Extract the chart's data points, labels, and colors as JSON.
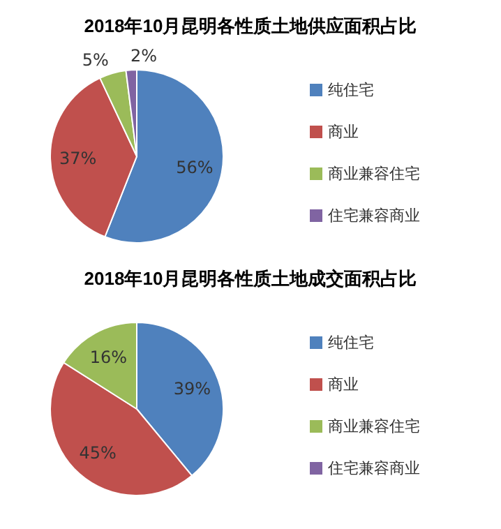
{
  "chart_data": [
    {
      "type": "pie",
      "title": "2018年10月昆明各性质土地供应面积占比",
      "categories": [
        "纯住宅",
        "商业",
        "商业兼容住宅",
        "住宅兼容商业"
      ],
      "values": [
        56,
        37,
        5,
        2
      ],
      "colors": [
        "#4f81bd",
        "#c0504d",
        "#9bbb59",
        "#8064a2"
      ],
      "value_labels": [
        "56%",
        "37%",
        "5%",
        "2%"
      ],
      "legend": "right"
    },
    {
      "type": "pie",
      "title": "2018年10月昆明各性质土地成交面积占比",
      "categories": [
        "纯住宅",
        "商业",
        "商业兼容住宅",
        "住宅兼容商业"
      ],
      "values": [
        39,
        45,
        16,
        0
      ],
      "colors": [
        "#4f81bd",
        "#c0504d",
        "#9bbb59",
        "#8064a2"
      ],
      "value_labels": [
        "39%",
        "45%",
        "16%",
        null
      ],
      "legend": "right"
    }
  ]
}
